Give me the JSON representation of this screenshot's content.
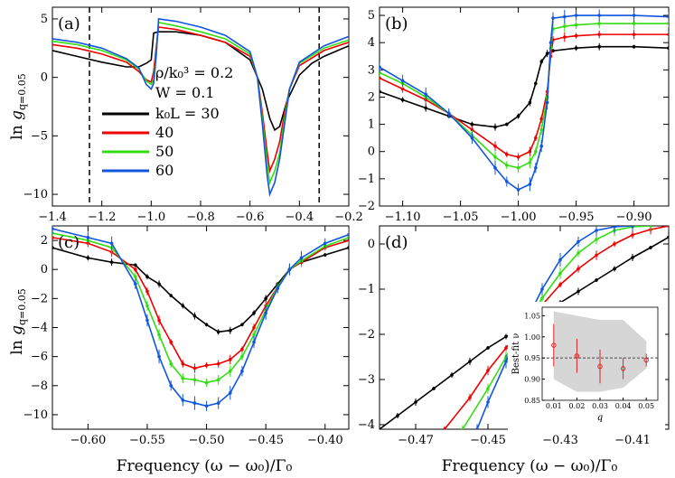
{
  "colors": {
    "L30": "#000000",
    "L40": "#ee0000",
    "L50": "#33dd11",
    "L60": "#1155dd",
    "inset_band": "#d6d6d6",
    "inset_point": "#e02020"
  },
  "legend": {
    "params_line1": "ρ/k₀³ = 0.2",
    "params_line2": "W = 0.1",
    "entries": [
      "k₀L = 30",
      "40",
      "50",
      "60"
    ]
  },
  "chart_data": [
    {
      "panel": "(a)",
      "type": "line",
      "ylabel": "ln g_{q=0.05}",
      "xlim": [
        -1.4,
        -0.2
      ],
      "ylim": [
        -11,
        6
      ],
      "xticks": [
        -1.4,
        -1.2,
        -1.0,
        -0.8,
        -0.6,
        -0.4,
        -0.2
      ],
      "xtick_labels": [
        "−1.4",
        "−1.2",
        "−1.0",
        "−0.8",
        "−0.6",
        "−0.4",
        "−0.2"
      ],
      "yticks": [
        -10,
        -5,
        0,
        5
      ],
      "ytick_labels": [
        "−10",
        "−5",
        "0",
        "5"
      ],
      "vlines": [
        -1.25,
        -0.32
      ],
      "series": [
        {
          "name": "k₀L = 30",
          "x": [
            -1.4,
            -1.3,
            -1.2,
            -1.1,
            -1.05,
            -1.02,
            -1.0,
            -0.99,
            -0.97,
            -0.9,
            -0.8,
            -0.7,
            -0.6,
            -0.55,
            -0.52,
            -0.5,
            -0.48,
            -0.45,
            -0.4,
            -0.35,
            -0.3,
            -0.2
          ],
          "y": [
            2.3,
            1.8,
            1.3,
            0.9,
            0.9,
            1.2,
            1.5,
            3.8,
            3.9,
            3.9,
            3.6,
            3.0,
            1.5,
            -1.0,
            -3.5,
            -4.5,
            -4.2,
            -2.0,
            0.2,
            1.2,
            1.8,
            2.7
          ]
        },
        {
          "name": "40",
          "x": [
            -1.4,
            -1.3,
            -1.2,
            -1.1,
            -1.05,
            -1.02,
            -1.0,
            -0.99,
            -0.98,
            -0.97,
            -0.9,
            -0.8,
            -0.7,
            -0.6,
            -0.57,
            -0.55,
            -0.53,
            -0.52,
            -0.5,
            -0.48,
            -0.46,
            -0.44,
            -0.4,
            -0.3,
            -0.2
          ],
          "y": [
            2.8,
            2.5,
            2.0,
            1.3,
            0.5,
            -0.2,
            -0.4,
            0.5,
            2.5,
            4.3,
            4.1,
            3.6,
            3.0,
            1.8,
            0.0,
            -3.0,
            -6.5,
            -8.0,
            -7.0,
            -5.5,
            -3.0,
            -1.0,
            1.0,
            2.3,
            3.0
          ]
        },
        {
          "name": "50",
          "x": [
            -1.4,
            -1.3,
            -1.2,
            -1.1,
            -1.05,
            -1.02,
            -1.0,
            -0.99,
            -0.98,
            -0.97,
            -0.9,
            -0.8,
            -0.7,
            -0.6,
            -0.57,
            -0.55,
            -0.53,
            -0.52,
            -0.5,
            -0.48,
            -0.46,
            -0.44,
            -0.4,
            -0.3,
            -0.2
          ],
          "y": [
            3.1,
            2.8,
            2.3,
            1.5,
            0.7,
            -0.3,
            -0.6,
            -0.2,
            2.0,
            4.7,
            4.4,
            3.9,
            3.3,
            2.0,
            0.0,
            -3.5,
            -7.5,
            -9.0,
            -8.0,
            -6.5,
            -3.5,
            -1.0,
            1.2,
            2.5,
            3.2
          ]
        },
        {
          "name": "60",
          "x": [
            -1.4,
            -1.3,
            -1.2,
            -1.1,
            -1.05,
            -1.02,
            -1.0,
            -0.99,
            -0.98,
            -0.97,
            -0.9,
            -0.8,
            -0.7,
            -0.6,
            -0.57,
            -0.55,
            -0.53,
            -0.52,
            -0.5,
            -0.48,
            -0.46,
            -0.44,
            -0.4,
            -0.3,
            -0.2
          ],
          "y": [
            3.3,
            3.0,
            2.5,
            1.6,
            0.8,
            -0.6,
            -1.0,
            -0.5,
            1.8,
            5.0,
            4.8,
            4.3,
            3.6,
            2.2,
            0.0,
            -4.0,
            -8.5,
            -10.0,
            -9.0,
            -7.0,
            -4.0,
            -1.0,
            1.3,
            2.7,
            3.5
          ]
        }
      ]
    },
    {
      "panel": "(b)",
      "type": "line",
      "xlim": [
        -1.12,
        -0.87
      ],
      "ylim": [
        -2,
        5.3
      ],
      "xticks": [
        -1.1,
        -1.05,
        -1.0,
        -0.95,
        -0.9
      ],
      "xtick_labels": [
        "−1.10",
        "−1.05",
        "−1.00",
        "−0.95",
        "−0.90"
      ],
      "yticks": [
        -2,
        -1,
        0,
        1,
        2,
        3,
        4,
        5
      ],
      "ytick_labels": [
        "−2",
        "−1",
        "0",
        "1",
        "2",
        "3",
        "4",
        "5"
      ],
      "series": [
        {
          "name": "k₀L = 30",
          "x": [
            -1.12,
            -1.1,
            -1.08,
            -1.06,
            -1.04,
            -1.02,
            -1.01,
            -1.0,
            -0.99,
            -0.985,
            -0.98,
            -0.975,
            -0.97,
            -0.95,
            -0.93,
            -0.9,
            -0.87
          ],
          "y": [
            2.2,
            1.9,
            1.6,
            1.3,
            1.0,
            0.9,
            1.0,
            1.3,
            1.8,
            2.5,
            3.3,
            3.6,
            3.7,
            3.8,
            3.85,
            3.85,
            3.8
          ]
        },
        {
          "name": "40",
          "x": [
            -1.12,
            -1.1,
            -1.08,
            -1.06,
            -1.04,
            -1.02,
            -1.01,
            -1.0,
            -0.99,
            -0.985,
            -0.98,
            -0.975,
            -0.972,
            -0.97,
            -0.96,
            -0.95,
            -0.93,
            -0.9,
            -0.87
          ],
          "y": [
            2.7,
            2.3,
            1.9,
            1.4,
            0.8,
            0.2,
            -0.1,
            -0.2,
            0.0,
            0.5,
            1.2,
            2.2,
            3.5,
            4.1,
            4.2,
            4.25,
            4.3,
            4.3,
            4.3
          ]
        },
        {
          "name": "50",
          "x": [
            -1.12,
            -1.1,
            -1.08,
            -1.06,
            -1.04,
            -1.02,
            -1.01,
            -1.0,
            -0.99,
            -0.985,
            -0.98,
            -0.975,
            -0.972,
            -0.97,
            -0.96,
            -0.95,
            -0.93,
            -0.9,
            -0.87
          ],
          "y": [
            2.9,
            2.5,
            2.0,
            1.4,
            0.6,
            -0.2,
            -0.5,
            -0.6,
            -0.4,
            0.0,
            0.8,
            2.0,
            3.8,
            4.5,
            4.6,
            4.65,
            4.7,
            4.7,
            4.7
          ]
        },
        {
          "name": "60",
          "x": [
            -1.12,
            -1.1,
            -1.08,
            -1.06,
            -1.04,
            -1.02,
            -1.01,
            -1.0,
            -0.99,
            -0.985,
            -0.98,
            -0.975,
            -0.972,
            -0.97,
            -0.96,
            -0.95,
            -0.93,
            -0.9,
            -0.87
          ],
          "y": [
            3.1,
            2.6,
            2.1,
            1.4,
            0.5,
            -0.6,
            -1.1,
            -1.4,
            -1.2,
            -0.6,
            0.2,
            1.8,
            4.0,
            4.9,
            4.95,
            5.0,
            5.0,
            5.0,
            4.95
          ]
        }
      ]
    },
    {
      "panel": "(c)",
      "type": "line",
      "ylabel": "ln g_{q=0.05}",
      "xlabel": "Frequency (ω − ω₀)/Γ₀",
      "xlim": [
        -0.63,
        -0.38
      ],
      "ylim": [
        -11,
        3
      ],
      "xticks": [
        -0.6,
        -0.55,
        -0.5,
        -0.45,
        -0.4
      ],
      "xtick_labels": [
        "−0.60",
        "−0.55",
        "−0.50",
        "−0.45",
        "−0.40"
      ],
      "yticks": [
        -10,
        -8,
        -6,
        -4,
        -2,
        0,
        2
      ],
      "ytick_labels": [
        "−10",
        "−8",
        "−6",
        "−4",
        "−2",
        "0",
        "2"
      ],
      "series": [
        {
          "name": "k₀L = 30",
          "x": [
            -0.63,
            -0.6,
            -0.58,
            -0.56,
            -0.55,
            -0.54,
            -0.53,
            -0.52,
            -0.51,
            -0.5,
            -0.49,
            -0.48,
            -0.47,
            -0.46,
            -0.45,
            -0.44,
            -0.43,
            -0.42,
            -0.4,
            -0.38
          ],
          "y": [
            1.5,
            0.8,
            0.5,
            0.3,
            -0.5,
            -1.0,
            -1.8,
            -2.5,
            -3.2,
            -3.8,
            -4.3,
            -4.2,
            -3.8,
            -3.0,
            -2.0,
            -1.0,
            0.0,
            0.5,
            1.0,
            1.5
          ]
        },
        {
          "name": "40",
          "x": [
            -0.63,
            -0.6,
            -0.58,
            -0.56,
            -0.55,
            -0.54,
            -0.53,
            -0.52,
            -0.51,
            -0.5,
            -0.49,
            -0.48,
            -0.47,
            -0.46,
            -0.45,
            -0.44,
            -0.43,
            -0.42,
            -0.4,
            -0.38
          ],
          "y": [
            2.2,
            1.8,
            1.2,
            0.0,
            -1.5,
            -3.5,
            -5.0,
            -6.5,
            -6.8,
            -6.6,
            -6.5,
            -6.2,
            -5.5,
            -4.0,
            -2.5,
            -1.2,
            0.0,
            0.5,
            1.5,
            2.0
          ]
        },
        {
          "name": "50",
          "x": [
            -0.63,
            -0.6,
            -0.58,
            -0.56,
            -0.55,
            -0.54,
            -0.53,
            -0.52,
            -0.51,
            -0.5,
            -0.49,
            -0.48,
            -0.47,
            -0.46,
            -0.45,
            -0.44,
            -0.43,
            -0.42,
            -0.4,
            -0.38
          ],
          "y": [
            2.5,
            2.0,
            1.5,
            -0.5,
            -2.5,
            -4.5,
            -6.5,
            -7.5,
            -7.6,
            -7.8,
            -7.6,
            -7.0,
            -6.0,
            -4.5,
            -2.8,
            -1.2,
            0.0,
            0.6,
            1.6,
            2.2
          ]
        },
        {
          "name": "60",
          "x": [
            -0.63,
            -0.6,
            -0.58,
            -0.56,
            -0.55,
            -0.54,
            -0.53,
            -0.52,
            -0.51,
            -0.5,
            -0.49,
            -0.48,
            -0.47,
            -0.46,
            -0.45,
            -0.44,
            -0.43,
            -0.42,
            -0.4,
            -0.38
          ],
          "y": [
            2.8,
            2.2,
            1.8,
            -1.0,
            -3.5,
            -6.0,
            -8.0,
            -9.0,
            -9.2,
            -9.4,
            -9.2,
            -8.5,
            -7.0,
            -5.0,
            -3.0,
            -1.3,
            0.0,
            0.8,
            1.8,
            2.4
          ]
        }
      ]
    },
    {
      "panel": "(d)",
      "type": "line",
      "xlabel": "Frequency (ω − ω₀)/Γ₀",
      "xlim": [
        -0.48,
        -0.4
      ],
      "ylim": [
        -4.1,
        0.4
      ],
      "xticks": [
        -0.47,
        -0.45,
        -0.43,
        -0.41
      ],
      "xtick_labels": [
        "−0.47",
        "−0.45",
        "−0.43",
        "−0.41"
      ],
      "yticks": [
        -4,
        -3,
        -2,
        -1,
        0
      ],
      "ytick_labels": [
        "−4",
        "−3",
        "−2",
        "−1",
        "0"
      ],
      "series": [
        {
          "name": "k₀L = 30",
          "x": [
            -0.48,
            -0.475,
            -0.47,
            -0.465,
            -0.46,
            -0.455,
            -0.45,
            -0.445,
            -0.44,
            -0.435,
            -0.43,
            -0.425,
            -0.42,
            -0.415,
            -0.41,
            -0.405,
            -0.4
          ],
          "y": [
            -4.1,
            -3.8,
            -3.5,
            -3.2,
            -2.9,
            -2.6,
            -2.3,
            -2.05,
            -1.8,
            -1.55,
            -1.3,
            -1.05,
            -0.8,
            -0.55,
            -0.3,
            -0.08,
            0.15
          ]
        },
        {
          "name": "40",
          "x": [
            -0.462,
            -0.455,
            -0.45,
            -0.445,
            -0.44,
            -0.435,
            -0.43,
            -0.425,
            -0.42,
            -0.415,
            -0.41,
            -0.405,
            -0.4
          ],
          "y": [
            -4.1,
            -3.4,
            -2.8,
            -2.3,
            -1.8,
            -1.35,
            -0.9,
            -0.55,
            -0.25,
            0.0,
            0.2,
            0.32,
            0.4
          ]
        },
        {
          "name": "50",
          "x": [
            -0.457,
            -0.45,
            -0.445,
            -0.44,
            -0.435,
            -0.43,
            -0.425,
            -0.42,
            -0.415,
            -0.41,
            -0.405
          ],
          "y": [
            -4.1,
            -3.2,
            -2.5,
            -1.8,
            -1.2,
            -0.65,
            -0.2,
            0.1,
            0.3,
            0.38,
            0.4
          ]
        },
        {
          "name": "60",
          "x": [
            -0.453,
            -0.45,
            -0.445,
            -0.44,
            -0.435,
            -0.43,
            -0.425,
            -0.42,
            -0.415,
            -0.41
          ],
          "y": [
            -4.1,
            -3.5,
            -2.6,
            -1.8,
            -1.0,
            -0.35,
            0.05,
            0.3,
            0.38,
            0.4
          ]
        }
      ],
      "inset": {
        "type": "scatter",
        "xlabel": "q",
        "ylabel": "Best-fit ν",
        "xlim": [
          0.005,
          0.055
        ],
        "ylim": [
          0.85,
          1.07
        ],
        "xticks": [
          0.01,
          0.02,
          0.03,
          0.04,
          0.05
        ],
        "xtick_labels": [
          "0.01",
          "0.02",
          "0.03",
          "0.04",
          "0.05"
        ],
        "yticks": [
          0.85,
          0.9,
          0.95,
          1.0,
          1.05
        ],
        "ytick_labels": [
          "0.85",
          "0.90",
          "0.95",
          "1.00",
          "1.05"
        ],
        "points": {
          "x": [
            0.01,
            0.02,
            0.03,
            0.04,
            0.05
          ],
          "y": [
            0.98,
            0.955,
            0.93,
            0.925,
            0.945
          ],
          "err": [
            0.05,
            0.04,
            0.04,
            0.025,
            0.015
          ]
        },
        "reference_line": 0.95,
        "band": {
          "x": [
            0.01,
            0.02,
            0.03,
            0.04,
            0.05
          ],
          "low": [
            0.9,
            0.87,
            0.87,
            0.88,
            0.925
          ],
          "high": [
            1.06,
            1.05,
            1.04,
            1.04,
            0.99
          ]
        }
      }
    }
  ]
}
